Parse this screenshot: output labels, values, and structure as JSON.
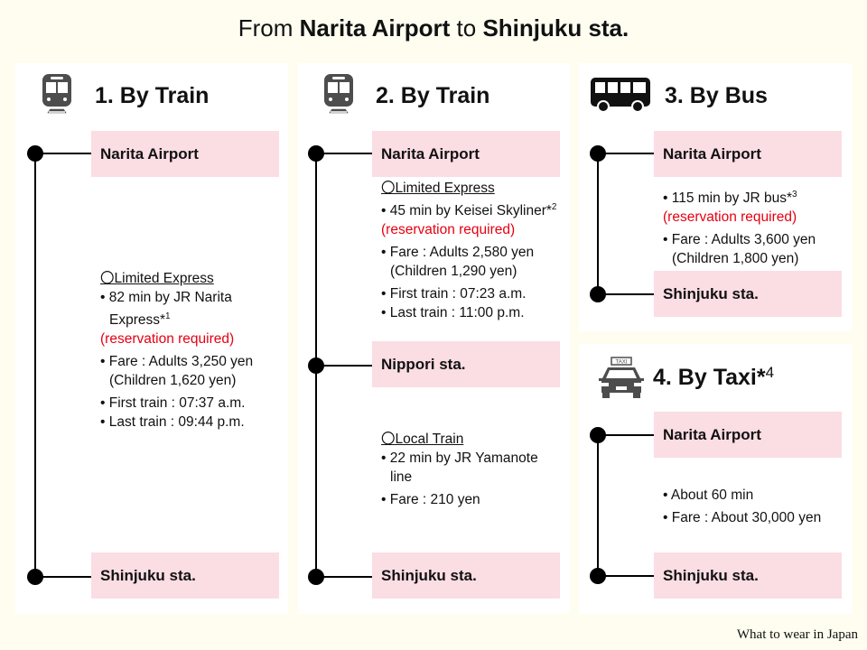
{
  "title": {
    "from": "From",
    "origin": "Narita Airport",
    "to": "to",
    "destination": "Shinjuku sta."
  },
  "routes": [
    {
      "heading": "1. By Train",
      "icon": "train-icon",
      "stops": [
        "Narita Airport",
        "Shinjuku sta."
      ],
      "segments": [
        {
          "header": "〇Limited Express",
          "line1": "• 82 min by JR Narita Express*",
          "note": "1",
          "reservation": "(reservation required)",
          "fare": "• Fare : Adults 3,250 yen (Children 1,620 yen)",
          "first": "• First train : 07:37 a.m.",
          "last": "• Last train : 09:44 p.m."
        }
      ]
    },
    {
      "heading": "2. By Train",
      "icon": "train-icon",
      "stops": [
        "Narita Airport",
        "Nippori sta.",
        "Shinjuku sta."
      ],
      "segments": [
        {
          "header": "〇Limited Express",
          "line1": "• 45 min by Keisei Skyliner*",
          "note": "2",
          "reservation": "(reservation required)",
          "fare": "• Fare : Adults 2,580 yen (Children 1,290 yen)",
          "first": "• First train : 07:23 a.m.",
          "last": "• Last train : 11:00 p.m."
        },
        {
          "header": "〇Local Train",
          "line1": "• 22 min by JR Yamanote line",
          "fare": "• Fare : 210 yen"
        }
      ]
    },
    {
      "heading": "3. By Bus",
      "icon": "bus-icon",
      "stops": [
        "Narita Airport",
        "Shinjuku sta."
      ],
      "segments": [
        {
          "line1": "• 115 min by JR bus*",
          "note": "3",
          "reservation": "(reservation required)",
          "fare": "• Fare : Adults 3,600 yen (Children 1,800 yen)"
        }
      ]
    },
    {
      "heading": "4. By Taxi*",
      "heading_note": "4",
      "icon": "taxi-icon",
      "icon_label": "TAXI",
      "stops": [
        "Narita Airport",
        "Shinjuku sta."
      ],
      "segments": [
        {
          "line1": "• About 60 min",
          "fare": "• Fare : About 30,000 yen"
        }
      ]
    }
  ],
  "credit": "What to wear in Japan",
  "colors": {
    "background": "#fefdf0",
    "stop_box": "#fbdde4",
    "reservation": "#e60012",
    "icon": "#4d4d4d"
  }
}
